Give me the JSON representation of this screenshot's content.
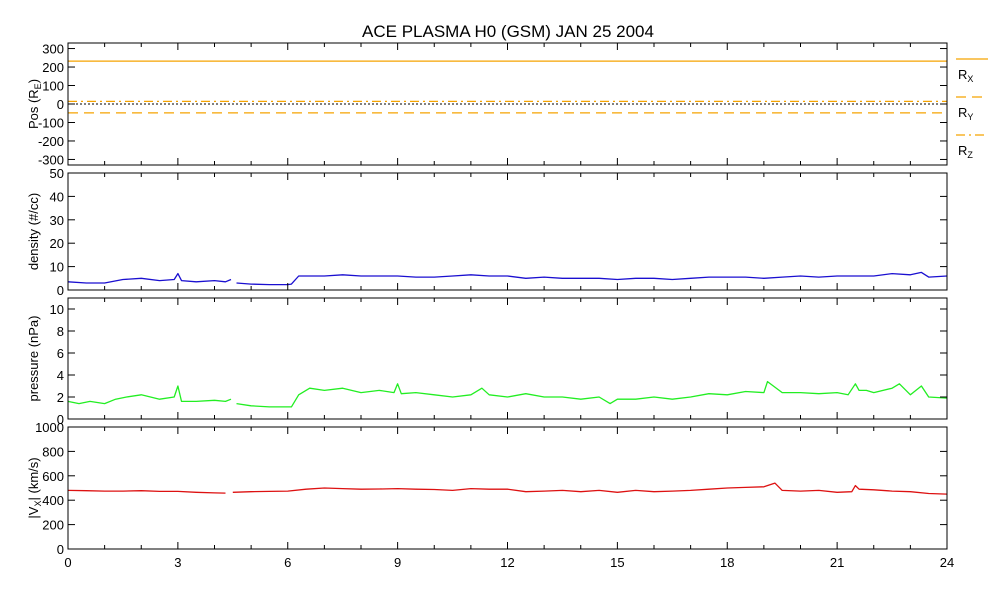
{
  "chart_data": {
    "type": "line",
    "title": "ACE PLASMA H0 (GSM)   JAN 25 2004",
    "x_axis": {
      "range": [
        0,
        24
      ],
      "ticks": [
        0,
        3,
        6,
        9,
        12,
        15,
        18,
        21,
        24
      ],
      "tick_labels": [
        "0",
        "3",
        "6",
        "9",
        "12",
        "15",
        "18",
        "21",
        "24"
      ]
    },
    "panels": [
      {
        "id": "pos",
        "ylabel_main": "Pos (R",
        "ylabel_sub": "E",
        "ylabel_end": ")",
        "ylim": [
          -330,
          330
        ],
        "yticks": [
          -300,
          -200,
          -100,
          0,
          100,
          200,
          300
        ],
        "legend": [
          {
            "main": "R",
            "sub": "X",
            "style": "solid",
            "color": "#f5a300"
          },
          {
            "main": "R",
            "sub": "Y",
            "style": "dashed",
            "color": "#f5a300"
          },
          {
            "main": "R",
            "sub": "Z",
            "style": "dashdot",
            "color": "#f5a300"
          }
        ],
        "series": [
          {
            "name": "RX",
            "color": "#f5a300",
            "style": "solid",
            "x": [
              0,
              24
            ],
            "y": [
              232,
              232
            ]
          },
          {
            "name": "RY",
            "color": "#f5a300",
            "style": "dashed",
            "x": [
              0,
              24
            ],
            "y": [
              -48,
              -48
            ]
          },
          {
            "name": "RZ",
            "color": "#f5a300",
            "style": "dashdot",
            "x": [
              0,
              24
            ],
            "y": [
              14,
              14
            ]
          }
        ]
      },
      {
        "id": "density",
        "ylabel_main": "density (#/cc)",
        "ylim": [
          0,
          50
        ],
        "yticks": [
          0,
          10,
          20,
          30,
          40,
          50
        ],
        "series": [
          {
            "name": "density",
            "color": "#1a0fd0",
            "style": "solid",
            "x": [
              0,
              0.5,
              1.0,
              1.5,
              2.0,
              2.5,
              2.9,
              3.0,
              3.1,
              3.5,
              4.0,
              4.3,
              4.45,
              null,
              4.6,
              5.0,
              5.5,
              6.0,
              6.1,
              6.3,
              7.0,
              7.5,
              8.0,
              8.5,
              9.0,
              9.5,
              10.0,
              10.5,
              11.0,
              11.5,
              12.0,
              12.5,
              13.0,
              13.5,
              14.0,
              14.5,
              15.0,
              15.5,
              16.0,
              16.5,
              17.0,
              17.5,
              18.0,
              18.5,
              19.0,
              19.5,
              20.0,
              20.5,
              21.0,
              21.5,
              22.0,
              22.5,
              23.0,
              23.3,
              23.5,
              24.0
            ],
            "y": [
              3.5,
              3.0,
              3.0,
              4.5,
              5.0,
              4.0,
              4.5,
              7.0,
              4.0,
              3.5,
              4.0,
              3.5,
              4.5,
              null,
              3.0,
              2.5,
              2.3,
              2.3,
              2.5,
              6.0,
              6.0,
              6.5,
              6.0,
              6.0,
              6.0,
              5.5,
              5.5,
              6.0,
              6.5,
              6.0,
              6.0,
              5.0,
              5.5,
              5.0,
              5.0,
              5.0,
              4.5,
              5.0,
              5.0,
              4.5,
              5.0,
              5.5,
              5.5,
              5.5,
              5.0,
              5.5,
              6.0,
              5.5,
              6.0,
              6.0,
              6.0,
              7.0,
              6.5,
              7.5,
              5.5,
              6.0
            ]
          }
        ]
      },
      {
        "id": "pressure",
        "ylabel_main": "pressure (nPa)",
        "ylim": [
          0,
          11
        ],
        "yticks": [
          0,
          2,
          4,
          6,
          8,
          10
        ],
        "series": [
          {
            "name": "pressure",
            "color": "#22ee22",
            "style": "solid",
            "x": [
              0,
              0.3,
              0.6,
              1.0,
              1.3,
              1.6,
              2.0,
              2.5,
              2.9,
              3.0,
              3.1,
              3.5,
              4.0,
              4.3,
              4.45,
              null,
              4.6,
              5.0,
              5.5,
              6.0,
              6.1,
              6.3,
              6.6,
              7.0,
              7.5,
              8.0,
              8.5,
              8.9,
              9.0,
              9.1,
              9.5,
              10.0,
              10.5,
              11.0,
              11.3,
              11.5,
              12.0,
              12.5,
              13.0,
              13.5,
              14.0,
              14.5,
              14.8,
              15.0,
              15.5,
              16.0,
              16.5,
              17.0,
              17.5,
              18.0,
              18.5,
              19.0,
              19.1,
              19.5,
              20.0,
              20.5,
              21.0,
              21.3,
              21.5,
              21.6,
              21.8,
              22.0,
              22.5,
              22.7,
              23.0,
              23.3,
              23.5,
              24.0
            ],
            "y": [
              1.6,
              1.4,
              1.6,
              1.4,
              1.8,
              2.0,
              2.2,
              1.8,
              2.0,
              3.0,
              1.6,
              1.6,
              1.7,
              1.6,
              1.8,
              null,
              1.4,
              1.2,
              1.1,
              1.1,
              1.1,
              2.2,
              2.8,
              2.6,
              2.8,
              2.4,
              2.6,
              2.4,
              3.2,
              2.3,
              2.4,
              2.2,
              2.0,
              2.2,
              2.8,
              2.2,
              2.0,
              2.3,
              2.0,
              2.0,
              1.8,
              2.0,
              1.4,
              1.8,
              1.8,
              2.0,
              1.8,
              2.0,
              2.3,
              2.2,
              2.5,
              2.4,
              3.4,
              2.4,
              2.4,
              2.3,
              2.4,
              2.2,
              3.2,
              2.6,
              2.6,
              2.4,
              2.8,
              3.2,
              2.2,
              3.0,
              2.0,
              1.9
            ]
          }
        ]
      },
      {
        "id": "vx",
        "ylabel_main": "|V",
        "ylabel_sub": "X",
        "ylabel_end": "| (km/s)",
        "ylim": [
          0,
          1000
        ],
        "yticks": [
          0,
          200,
          400,
          600,
          800,
          1000
        ],
        "series": [
          {
            "name": "vx",
            "color": "#dd1111",
            "style": "solid",
            "x": [
              0,
              0.5,
              1.0,
              1.5,
              2.0,
              2.5,
              3.0,
              3.5,
              4.0,
              4.3,
              null,
              4.5,
              5.0,
              5.5,
              6.0,
              6.5,
              7.0,
              7.5,
              8.0,
              8.5,
              9.0,
              9.5,
              10.0,
              10.5,
              11.0,
              11.5,
              12.0,
              12.5,
              13.0,
              13.5,
              14.0,
              14.5,
              15.0,
              15.5,
              16.0,
              16.5,
              17.0,
              17.5,
              18.0,
              18.5,
              19.0,
              19.3,
              19.5,
              20.0,
              20.5,
              21.0,
              21.4,
              21.5,
              21.6,
              22.0,
              22.5,
              23.0,
              23.5,
              24.0
            ],
            "y": [
              480,
              478,
              475,
              475,
              478,
              472,
              472,
              465,
              460,
              458,
              null,
              465,
              470,
              472,
              475,
              490,
              500,
              495,
              490,
              492,
              495,
              490,
              488,
              480,
              495,
              490,
              490,
              470,
              475,
              480,
              470,
              480,
              465,
              480,
              470,
              475,
              480,
              490,
              500,
              505,
              510,
              540,
              480,
              475,
              480,
              465,
              470,
              520,
              490,
              485,
              475,
              470,
              455,
              450
            ]
          }
        ]
      }
    ]
  }
}
